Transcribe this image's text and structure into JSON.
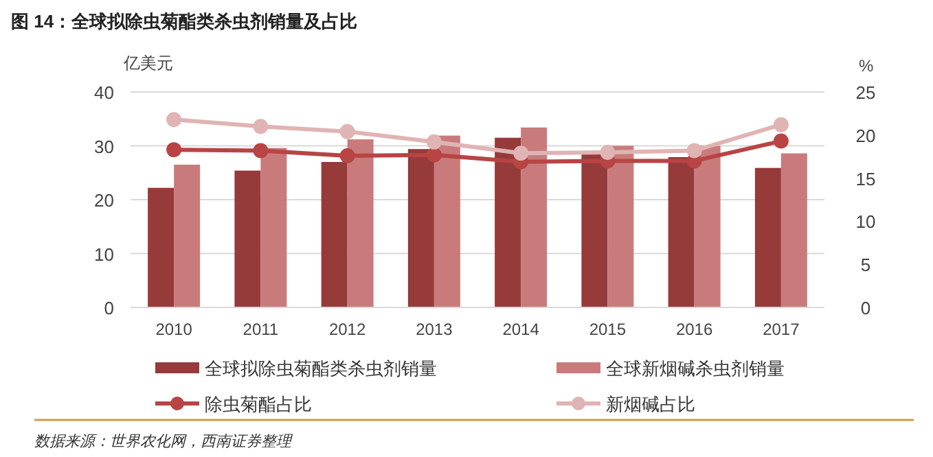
{
  "chart_data": {
    "type": "bar",
    "title": "图 14：全球拟除虫菊酯类杀虫剂销量及占比",
    "categories": [
      "2010",
      "2011",
      "2012",
      "2013",
      "2014",
      "2015",
      "2016",
      "2017"
    ],
    "series": [
      {
        "name": "全球拟除虫菊酯类杀虫剂销量",
        "color": "#963a3a",
        "values": [
          22.2,
          25.4,
          27.0,
          29.4,
          31.5,
          28.4,
          27.9,
          25.9
        ]
      },
      {
        "name": "全球新烟碱杀虫剂销量",
        "color": "#c97b7b",
        "values": [
          26.5,
          29.6,
          31.2,
          31.9,
          33.4,
          30.0,
          30.0,
          28.6
        ]
      },
      {
        "name": "除虫菊酯占比",
        "type": "line",
        "axis": "y2",
        "color": "#b84444",
        "values": [
          18.3,
          18.2,
          17.6,
          17.7,
          16.9,
          17.0,
          17.0,
          19.3
        ]
      },
      {
        "name": "新烟碱占比",
        "type": "line",
        "axis": "y2",
        "color": "#e0b4b4",
        "values": [
          21.8,
          21.0,
          20.4,
          19.2,
          17.9,
          18.0,
          18.2,
          21.2
        ]
      }
    ],
    "ylabel": "亿美元",
    "y2label": "%",
    "ylim": [
      0,
      40
    ],
    "yticks": [
      0,
      10,
      20,
      30,
      40
    ],
    "y2lim": [
      0,
      25
    ],
    "y2ticks": [
      0,
      5,
      10,
      15,
      20,
      25
    ],
    "grid": "y",
    "legend": "bottom",
    "marker": "circle",
    "annotations": [
      "数据来源：世界农化网，西南证券整理"
    ]
  }
}
